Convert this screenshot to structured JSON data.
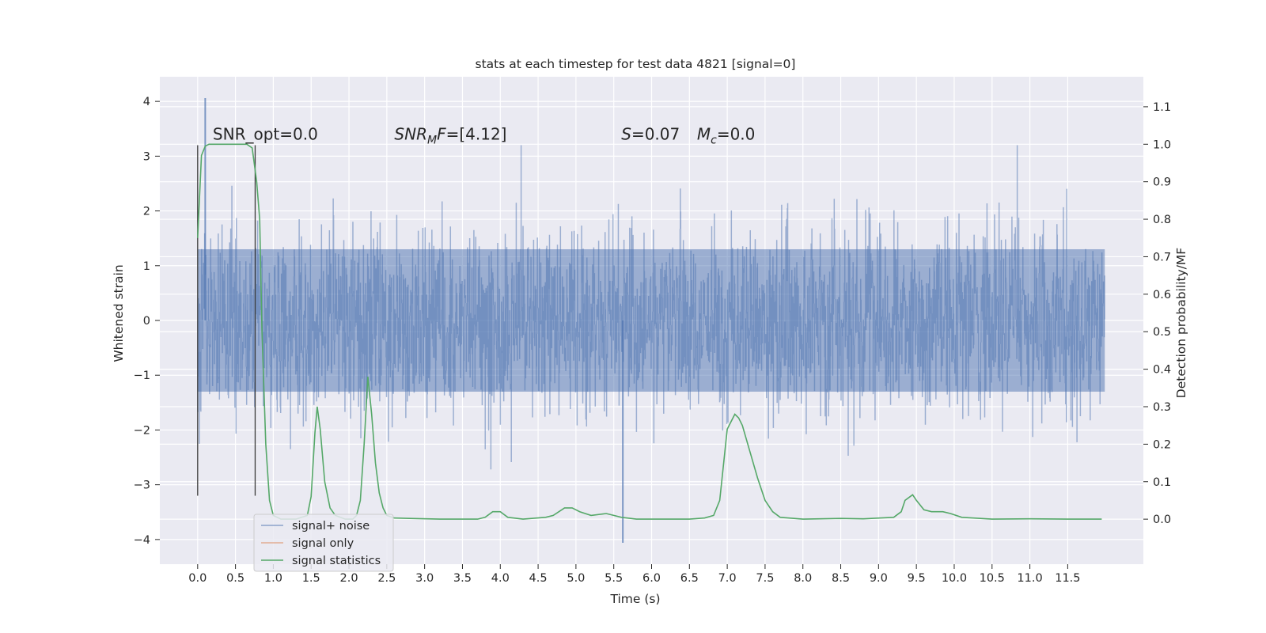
{
  "chart_data": {
    "type": "line",
    "title": "stats at each timestep for test data 4821 [signal=0]",
    "xlabel": "Time (s)",
    "ylabel_left": "Whitened strain",
    "ylabel_right": "Detection probability/MF",
    "xlim": [
      -0.5,
      12.5
    ],
    "ylim_left": [
      -4.45,
      4.45
    ],
    "ylim_right": [
      -0.12,
      1.18
    ],
    "grid": true,
    "background": "#eaeaf2",
    "x_ticks": [
      0.0,
      0.5,
      1.0,
      1.5,
      2.0,
      2.5,
      3.0,
      3.5,
      4.0,
      4.5,
      5.0,
      5.5,
      6.0,
      6.5,
      7.0,
      7.5,
      8.0,
      8.5,
      9.0,
      9.5,
      10.0,
      10.5,
      11.0,
      11.5
    ],
    "x_tick_labels": [
      "0.0",
      "0.5",
      "1.0",
      "1.5",
      "2.0",
      "2.5",
      "3.0",
      "3.5",
      "4.0",
      "4.5",
      "5.0",
      "5.5",
      "6.0",
      "6.5",
      "7.0",
      "7.5",
      "8.0",
      "8.5",
      "9.0",
      "9.5",
      "10.0",
      "10.5",
      "11.0",
      "11.5"
    ],
    "y_ticks_left": [
      -4,
      -3,
      -2,
      -1,
      0,
      1,
      2,
      3,
      4
    ],
    "y_tick_labels_left": [
      "−4",
      "−3",
      "−2",
      "−1",
      "0",
      "1",
      "2",
      "3",
      "4"
    ],
    "y_ticks_right": [
      0.0,
      0.1,
      0.2,
      0.3,
      0.4,
      0.5,
      0.6,
      0.7,
      0.8,
      0.9,
      1.0,
      1.1
    ],
    "y_tick_labels_right": [
      "0.0",
      "0.1",
      "0.2",
      "0.3",
      "0.4",
      "0.5",
      "0.6",
      "0.7",
      "0.8",
      "0.9",
      "1.0",
      "1.1"
    ],
    "annotations": [
      {
        "text": "SNR_opt=0.0",
        "x": 0.2,
        "y": 3.3
      },
      {
        "text_main": "SNR",
        "text_sub": "M",
        "text_tail": "F=[4.12]",
        "x": 2.6,
        "y": 3.3
      },
      {
        "text": "S=0.07",
        "x": 5.6,
        "y": 3.3
      },
      {
        "text_main": "M",
        "text_sub": "c",
        "text_tail": "=0.0",
        "x": 6.6,
        "y": 3.3
      }
    ],
    "vertical_lines": [
      {
        "x": 0.0,
        "ymin": -3.2,
        "ymax": 3.2
      },
      {
        "x": 0.76,
        "ymin": -3.2,
        "ymax": 3.2
      }
    ],
    "series": [
      {
        "name": "signal+ noise",
        "axis": "left",
        "color": "#4c72b0",
        "opacity": 0.5,
        "x_start": 0.0,
        "x_end": 11.99,
        "typical_envelope": [
          -1.3,
          1.3
        ],
        "max_value": 4.06,
        "min_value": -4.06
      },
      {
        "name": "signal only",
        "axis": "left",
        "color": "#dd8452",
        "x": [],
        "y": []
      },
      {
        "name": "signal statistics",
        "axis": "right",
        "color": "#55a868",
        "x": [
          0.0,
          0.05,
          0.1,
          0.15,
          0.2,
          0.3,
          0.5,
          0.65,
          0.72,
          0.78,
          0.82,
          0.85,
          0.9,
          0.95,
          1.0,
          1.1,
          1.3,
          1.45,
          1.5,
          1.55,
          1.58,
          1.62,
          1.68,
          1.75,
          1.82,
          1.95,
          2.05,
          2.1,
          2.15,
          2.2,
          2.25,
          2.3,
          2.35,
          2.4,
          2.45,
          2.5,
          2.6,
          2.8,
          3.2,
          3.7,
          3.8,
          3.9,
          4.0,
          4.1,
          4.3,
          4.6,
          4.7,
          4.85,
          4.95,
          5.05,
          5.2,
          5.4,
          5.5,
          5.6,
          5.8,
          6.5,
          6.7,
          6.82,
          6.9,
          7.0,
          7.1,
          7.15,
          7.2,
          7.3,
          7.4,
          7.5,
          7.6,
          7.7,
          8.0,
          8.5,
          8.8,
          9.2,
          9.3,
          9.35,
          9.45,
          9.5,
          9.6,
          9.7,
          9.85,
          9.95,
          10.1,
          10.5,
          11.0,
          11.5,
          11.95
        ],
        "y": [
          0.75,
          0.97,
          0.995,
          1.0,
          1.0,
          1.0,
          1.0,
          1.0,
          0.99,
          0.9,
          0.8,
          0.5,
          0.2,
          0.05,
          0.01,
          0.0,
          0.0,
          0.01,
          0.06,
          0.23,
          0.3,
          0.24,
          0.1,
          0.03,
          0.01,
          0.0,
          0.0,
          0.01,
          0.05,
          0.2,
          0.38,
          0.28,
          0.15,
          0.07,
          0.03,
          0.01,
          0.003,
          0.002,
          0.0,
          0.0,
          0.005,
          0.02,
          0.02,
          0.005,
          0.0,
          0.005,
          0.01,
          0.03,
          0.03,
          0.02,
          0.01,
          0.015,
          0.01,
          0.005,
          0.0,
          0.0,
          0.003,
          0.01,
          0.05,
          0.24,
          0.28,
          0.27,
          0.25,
          0.18,
          0.11,
          0.05,
          0.02,
          0.005,
          0.0,
          0.002,
          0.001,
          0.005,
          0.02,
          0.05,
          0.065,
          0.05,
          0.025,
          0.02,
          0.02,
          0.015,
          0.005,
          0.0,
          0.001,
          0.0,
          0.0
        ]
      }
    ],
    "legend": {
      "placement": "lower left",
      "entries": [
        {
          "label": "signal+ noise",
          "color": "#4c72b0"
        },
        {
          "label": "signal only",
          "color": "#dd8452"
        },
        {
          "label": "signal statistics",
          "color": "#55a868"
        }
      ]
    }
  }
}
